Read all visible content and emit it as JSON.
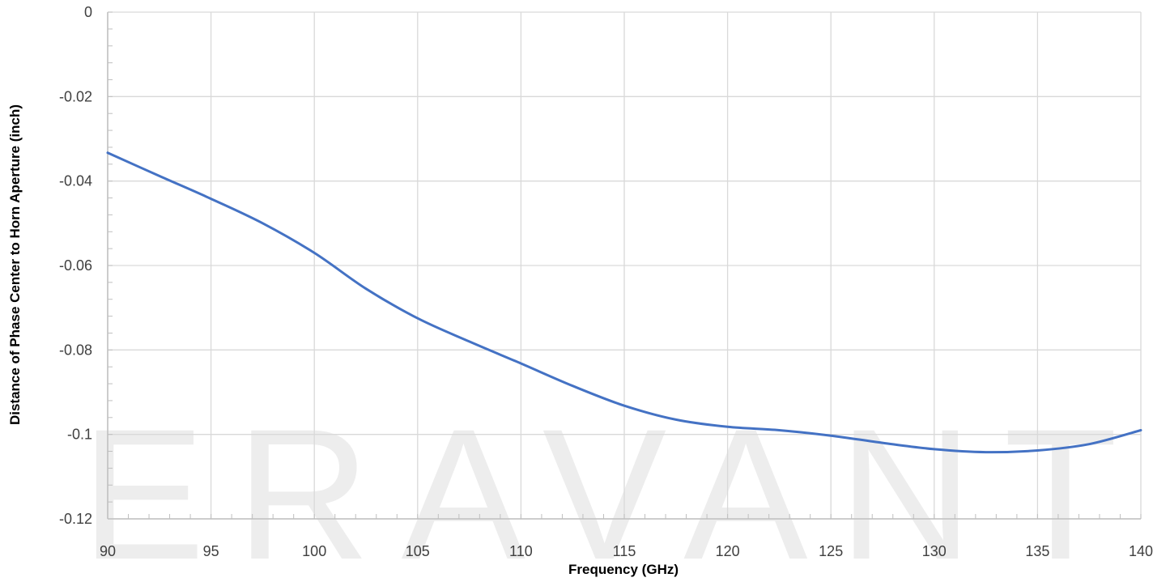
{
  "watermark": {
    "text": "ERAVANT",
    "color": "#ededed"
  },
  "chart_data": {
    "type": "line",
    "title": "",
    "xlabel": "Frequency (GHz)",
    "ylabel": "Distance of Phase Center to Horn Aperture (inch)",
    "xlim": [
      90,
      140
    ],
    "ylim": [
      -0.12,
      0
    ],
    "xticks": [
      90,
      95,
      100,
      105,
      110,
      115,
      120,
      125,
      130,
      135,
      140
    ],
    "xtick_labels": [
      "90",
      "95",
      "100",
      "105",
      "110",
      "115",
      "120",
      "125",
      "130",
      "135",
      "140"
    ],
    "yticks": [
      0,
      -0.02,
      -0.04,
      -0.06,
      -0.08,
      -0.1,
      -0.12
    ],
    "ytick_labels": [
      "0",
      "-0.02",
      "-0.04",
      "-0.06",
      "-0.08",
      "-0.1",
      "-0.12"
    ],
    "grid": true,
    "legend": "none",
    "line_color": "#4472c4",
    "grid_color": "#d9d9d9",
    "series": [
      {
        "x": [
          90,
          92.5,
          95,
          97.5,
          100,
          102.5,
          105,
          107.5,
          110,
          112.5,
          115,
          117.5,
          120,
          122.5,
          125,
          127.5,
          130,
          132.5,
          135,
          137.5,
          140
        ],
        "y": [
          -0.0333,
          -0.0388,
          -0.0442,
          -0.05,
          -0.057,
          -0.0655,
          -0.0725,
          -0.078,
          -0.0832,
          -0.0885,
          -0.0932,
          -0.0965,
          -0.0982,
          -0.099,
          -0.1003,
          -0.102,
          -0.1035,
          -0.1042,
          -0.1038,
          -0.1023,
          -0.099
        ]
      }
    ]
  }
}
